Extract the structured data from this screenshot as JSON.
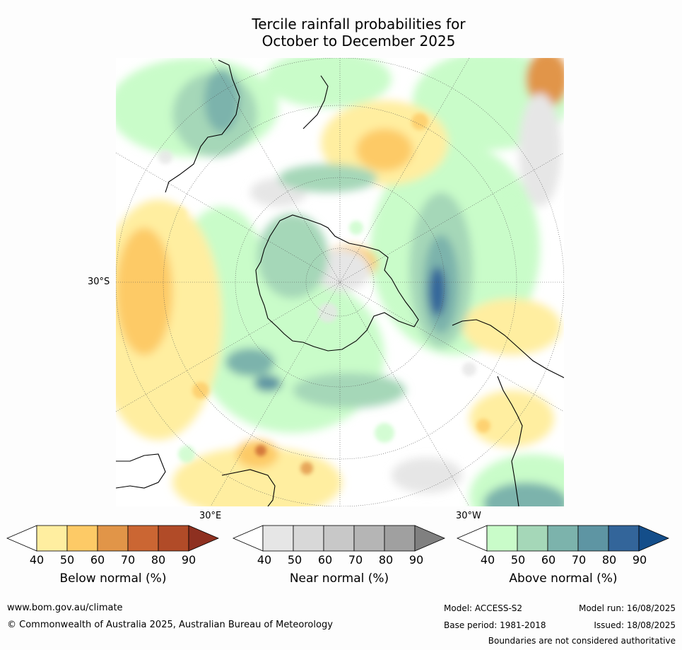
{
  "title_line1": "Tercile rainfall probabilities for",
  "title_line2": "October to December 2025",
  "map_labels": {
    "lat_30s": "30°S",
    "lon_30e": "30°E",
    "lon_30w": "30°W"
  },
  "colorbars": [
    {
      "label": "Below normal (%)",
      "ticks": [
        "40",
        "50",
        "60",
        "70",
        "80",
        "90"
      ],
      "colors": [
        "#ffeea0",
        "#fdca66",
        "#e19548",
        "#cb6633",
        "#b14b28",
        "#8e3020"
      ]
    },
    {
      "label": "Near normal (%)",
      "ticks": [
        "40",
        "50",
        "60",
        "70",
        "80",
        "90"
      ],
      "colors": [
        "#e6e6e6",
        "#d8d8d8",
        "#c8c8c8",
        "#b5b5b5",
        "#a0a0a0",
        "#808080"
      ]
    },
    {
      "label": "Above normal (%)",
      "ticks": [
        "40",
        "50",
        "60",
        "70",
        "80",
        "90"
      ],
      "colors": [
        "#c9fcc9",
        "#a5d7b8",
        "#7cb3ac",
        "#5e95a3",
        "#33659a",
        "#144e8a"
      ]
    }
  ],
  "footer": {
    "website": "www.bom.gov.au/climate",
    "copyright": "© Commonwealth of Australia 2025, Australian Bureau of Meteorology",
    "model": "Model: ACCESS-S2",
    "base_period": "Base period: 1981-2018",
    "model_run": "Model run: 16/08/2025",
    "issued": "Issued: 18/08/2025",
    "disclaimer": "Boundaries are not considered authoritative"
  }
}
